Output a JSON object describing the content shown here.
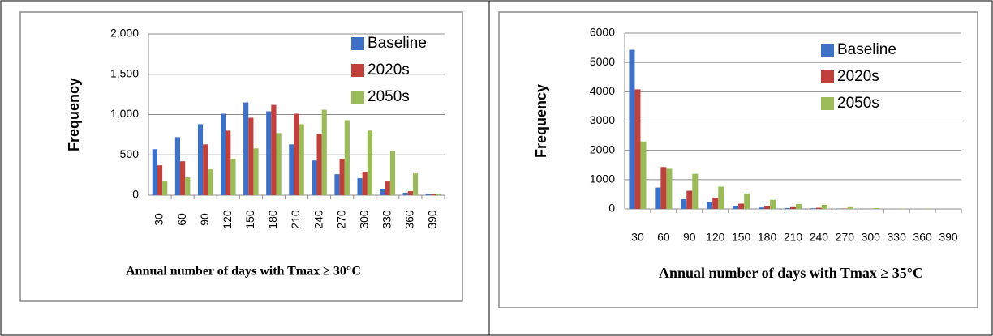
{
  "chart_data": [
    {
      "type": "bar",
      "x_label": "Annual number of days with Tmax ≥ 30°C",
      "y_label": "Frequency",
      "categories": [
        "30",
        "60",
        "90",
        "120",
        "150",
        "180",
        "210",
        "240",
        "270",
        "300",
        "330",
        "360",
        "390"
      ],
      "series": [
        {
          "name": "Baseline",
          "color": "#3e70c5",
          "values": [
            570,
            720,
            880,
            1010,
            1150,
            1040,
            630,
            430,
            260,
            210,
            80,
            30,
            15
          ]
        },
        {
          "name": "2020s",
          "color": "#c0413b",
          "values": [
            370,
            420,
            630,
            800,
            960,
            1120,
            1010,
            760,
            450,
            290,
            170,
            50,
            10
          ]
        },
        {
          "name": "2050s",
          "color": "#9bbb59",
          "values": [
            170,
            220,
            320,
            450,
            580,
            770,
            880,
            1060,
            930,
            800,
            550,
            270,
            15
          ]
        }
      ],
      "ylim": [
        0,
        2000
      ],
      "yticks": [
        0,
        500,
        {
          "value": 1000,
          "label": "1,000"
        },
        {
          "value": 1500,
          "label": "1,500"
        },
        {
          "value": 2000,
          "label": "2,000"
        }
      ],
      "grid": true
    },
    {
      "type": "bar",
      "x_label": "Annual number of days with Tmax ≥ 35°C",
      "y_label": "Frequency",
      "categories": [
        "30",
        "60",
        "90",
        "120",
        "150",
        "180",
        "210",
        "240",
        "270",
        "300",
        "330",
        "360",
        "390"
      ],
      "series": [
        {
          "name": "Baseline",
          "color": "#3e70c5",
          "values": [
            5430,
            730,
            330,
            230,
            100,
            50,
            30,
            20,
            10,
            5,
            0,
            0,
            0
          ]
        },
        {
          "name": "2020s",
          "color": "#c0413b",
          "values": [
            4080,
            1430,
            620,
            380,
            180,
            90,
            60,
            40,
            15,
            5,
            0,
            0,
            0
          ]
        },
        {
          "name": "2050s",
          "color": "#9bbb59",
          "values": [
            2300,
            1370,
            1200,
            760,
            530,
            310,
            170,
            140,
            60,
            30,
            10,
            5,
            0
          ]
        }
      ],
      "ylim": [
        0,
        6000
      ],
      "yticks": [
        0,
        1000,
        2000,
        3000,
        4000,
        5000,
        6000
      ],
      "grid": true
    }
  ]
}
